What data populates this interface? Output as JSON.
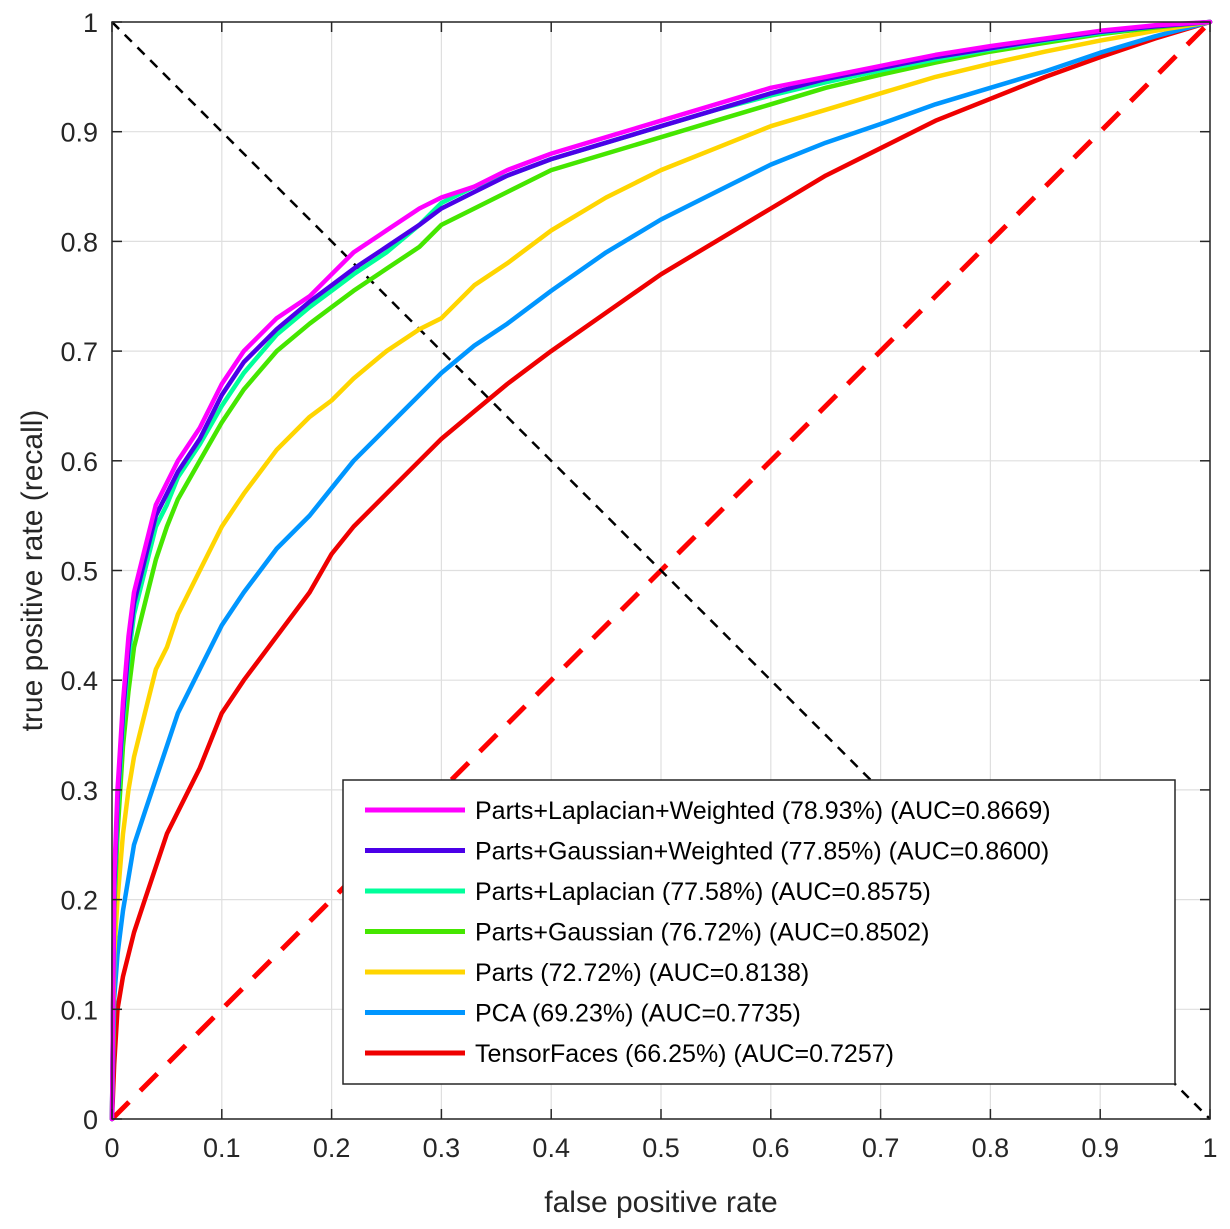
{
  "chart_data": {
    "type": "line",
    "title": "",
    "xlabel": "false positive rate",
    "ylabel": "true positive rate (recall)",
    "xlim": [
      0,
      1
    ],
    "ylim": [
      0,
      1
    ],
    "grid": true,
    "legend_position": "bottom-right",
    "x_ticks": [
      "0",
      "0.1",
      "0.2",
      "0.3",
      "0.4",
      "0.5",
      "0.6",
      "0.7",
      "0.8",
      "0.9",
      "1"
    ],
    "y_ticks": [
      "0",
      "0.1",
      "0.2",
      "0.3",
      "0.4",
      "0.5",
      "0.6",
      "0.7",
      "0.8",
      "0.9",
      "1"
    ],
    "reference_lines": [
      {
        "name": "chance-diagonal",
        "color": "#ff0000",
        "style": "dashed",
        "x": [
          0,
          1
        ],
        "y": [
          0,
          1
        ]
      },
      {
        "name": "equal-error-diagonal",
        "color": "#000000",
        "style": "dashed",
        "x": [
          0,
          1
        ],
        "y": [
          1,
          0
        ]
      }
    ],
    "series": [
      {
        "name": "Parts+Laplacian+Weighted (78.93%) (AUC=0.8669)",
        "color": "#ff00ff",
        "x": [
          0,
          0.002,
          0.005,
          0.01,
          0.015,
          0.02,
          0.03,
          0.04,
          0.05,
          0.06,
          0.08,
          0.1,
          0.12,
          0.15,
          0.18,
          0.2,
          0.22,
          0.25,
          0.28,
          0.3,
          0.33,
          0.36,
          0.4,
          0.45,
          0.5,
          0.55,
          0.6,
          0.65,
          0.7,
          0.75,
          0.8,
          0.85,
          0.9,
          0.95,
          1
        ],
        "y": [
          0,
          0.22,
          0.3,
          0.38,
          0.44,
          0.48,
          0.52,
          0.56,
          0.58,
          0.6,
          0.63,
          0.67,
          0.7,
          0.73,
          0.75,
          0.77,
          0.79,
          0.81,
          0.83,
          0.84,
          0.85,
          0.865,
          0.88,
          0.895,
          0.91,
          0.925,
          0.94,
          0.95,
          0.96,
          0.97,
          0.978,
          0.985,
          0.992,
          0.997,
          1
        ]
      },
      {
        "name": "Parts+Gaussian+Weighted (77.85%) (AUC=0.8600)",
        "color": "#4b00e8",
        "x": [
          0,
          0.002,
          0.005,
          0.01,
          0.015,
          0.02,
          0.03,
          0.04,
          0.05,
          0.06,
          0.08,
          0.1,
          0.12,
          0.15,
          0.18,
          0.2,
          0.22,
          0.25,
          0.28,
          0.3,
          0.33,
          0.36,
          0.4,
          0.45,
          0.5,
          0.55,
          0.6,
          0.65,
          0.7,
          0.75,
          0.8,
          0.85,
          0.9,
          0.95,
          1
        ],
        "y": [
          0,
          0.21,
          0.29,
          0.37,
          0.43,
          0.47,
          0.51,
          0.55,
          0.57,
          0.59,
          0.62,
          0.66,
          0.69,
          0.72,
          0.745,
          0.76,
          0.775,
          0.795,
          0.815,
          0.83,
          0.845,
          0.86,
          0.875,
          0.89,
          0.905,
          0.92,
          0.935,
          0.948,
          0.958,
          0.968,
          0.976,
          0.984,
          0.991,
          0.996,
          1
        ]
      },
      {
        "name": "Parts+Laplacian (77.58%) (AUC=0.8575)",
        "color": "#00ff9b",
        "x": [
          0,
          0.002,
          0.005,
          0.01,
          0.015,
          0.02,
          0.03,
          0.04,
          0.05,
          0.06,
          0.08,
          0.1,
          0.12,
          0.15,
          0.18,
          0.2,
          0.22,
          0.25,
          0.28,
          0.3,
          0.33,
          0.36,
          0.4,
          0.45,
          0.5,
          0.55,
          0.6,
          0.65,
          0.7,
          0.75,
          0.8,
          0.85,
          0.9,
          0.95,
          1
        ],
        "y": [
          0,
          0.2,
          0.28,
          0.36,
          0.42,
          0.46,
          0.5,
          0.54,
          0.56,
          0.585,
          0.615,
          0.65,
          0.68,
          0.715,
          0.74,
          0.755,
          0.77,
          0.79,
          0.815,
          0.835,
          0.85,
          0.86,
          0.875,
          0.89,
          0.905,
          0.92,
          0.933,
          0.945,
          0.956,
          0.966,
          0.975,
          0.983,
          0.99,
          0.996,
          1
        ]
      },
      {
        "name": "Parts+Gaussian (76.72%) (AUC=0.8502)",
        "color": "#45e600",
        "x": [
          0,
          0.002,
          0.005,
          0.01,
          0.015,
          0.02,
          0.03,
          0.04,
          0.05,
          0.06,
          0.08,
          0.1,
          0.12,
          0.15,
          0.18,
          0.2,
          0.22,
          0.25,
          0.28,
          0.3,
          0.33,
          0.36,
          0.4,
          0.45,
          0.5,
          0.55,
          0.6,
          0.65,
          0.7,
          0.75,
          0.8,
          0.85,
          0.9,
          0.95,
          1
        ],
        "y": [
          0,
          0.19,
          0.26,
          0.34,
          0.39,
          0.43,
          0.47,
          0.51,
          0.54,
          0.565,
          0.6,
          0.635,
          0.665,
          0.7,
          0.725,
          0.74,
          0.755,
          0.775,
          0.795,
          0.815,
          0.83,
          0.845,
          0.865,
          0.88,
          0.895,
          0.91,
          0.925,
          0.94,
          0.952,
          0.963,
          0.973,
          0.981,
          0.989,
          0.995,
          1
        ]
      },
      {
        "name": "Parts (72.72%) (AUC=0.8138)",
        "color": "#ffd500",
        "x": [
          0,
          0.002,
          0.005,
          0.01,
          0.015,
          0.02,
          0.03,
          0.04,
          0.05,
          0.06,
          0.08,
          0.1,
          0.12,
          0.15,
          0.18,
          0.2,
          0.22,
          0.25,
          0.28,
          0.3,
          0.33,
          0.36,
          0.4,
          0.45,
          0.5,
          0.55,
          0.6,
          0.65,
          0.7,
          0.75,
          0.8,
          0.85,
          0.9,
          0.95,
          1
        ],
        "y": [
          0,
          0.15,
          0.2,
          0.26,
          0.3,
          0.33,
          0.37,
          0.41,
          0.43,
          0.46,
          0.5,
          0.54,
          0.57,
          0.61,
          0.64,
          0.655,
          0.675,
          0.7,
          0.72,
          0.73,
          0.76,
          0.78,
          0.81,
          0.84,
          0.865,
          0.885,
          0.905,
          0.92,
          0.935,
          0.95,
          0.962,
          0.973,
          0.983,
          0.992,
          1
        ]
      },
      {
        "name": "PCA (69.23%) (AUC=0.7735)",
        "color": "#0096ff",
        "x": [
          0,
          0.002,
          0.005,
          0.01,
          0.015,
          0.02,
          0.03,
          0.04,
          0.05,
          0.06,
          0.08,
          0.1,
          0.12,
          0.15,
          0.18,
          0.2,
          0.22,
          0.25,
          0.28,
          0.3,
          0.33,
          0.36,
          0.4,
          0.45,
          0.5,
          0.55,
          0.6,
          0.65,
          0.7,
          0.75,
          0.8,
          0.85,
          0.9,
          0.95,
          1
        ],
        "y": [
          0,
          0.11,
          0.15,
          0.19,
          0.22,
          0.25,
          0.28,
          0.31,
          0.34,
          0.37,
          0.41,
          0.45,
          0.48,
          0.52,
          0.55,
          0.575,
          0.6,
          0.63,
          0.66,
          0.68,
          0.705,
          0.725,
          0.755,
          0.79,
          0.82,
          0.845,
          0.87,
          0.89,
          0.907,
          0.925,
          0.94,
          0.955,
          0.972,
          0.987,
          1
        ]
      },
      {
        "name": "TensorFaces (66.25%) (AUC=0.7257)",
        "color": "#ef0000",
        "x": [
          0,
          0.002,
          0.005,
          0.01,
          0.015,
          0.02,
          0.03,
          0.04,
          0.05,
          0.06,
          0.08,
          0.1,
          0.12,
          0.15,
          0.18,
          0.2,
          0.22,
          0.25,
          0.28,
          0.3,
          0.33,
          0.36,
          0.4,
          0.45,
          0.5,
          0.55,
          0.6,
          0.65,
          0.7,
          0.75,
          0.8,
          0.85,
          0.9,
          0.95,
          1
        ],
        "y": [
          0,
          0.05,
          0.1,
          0.13,
          0.15,
          0.17,
          0.2,
          0.23,
          0.26,
          0.28,
          0.32,
          0.37,
          0.4,
          0.44,
          0.48,
          0.515,
          0.54,
          0.57,
          0.6,
          0.62,
          0.645,
          0.67,
          0.7,
          0.735,
          0.77,
          0.8,
          0.83,
          0.86,
          0.885,
          0.91,
          0.93,
          0.95,
          0.968,
          0.985,
          1
        ]
      }
    ]
  }
}
